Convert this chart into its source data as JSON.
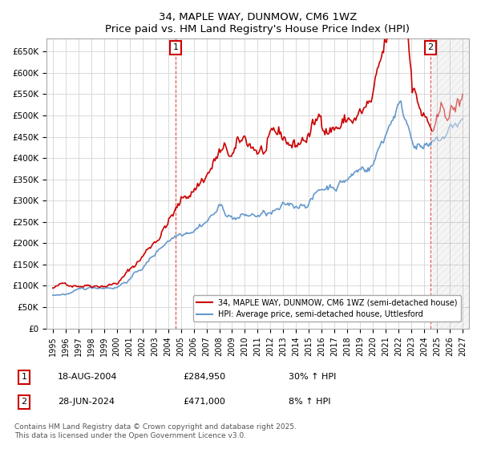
{
  "title": "34, MAPLE WAY, DUNMOW, CM6 1WZ",
  "subtitle": "Price paid vs. HM Land Registry's House Price Index (HPI)",
  "legend_label_red": "34, MAPLE WAY, DUNMOW, CM6 1WZ (semi-detached house)",
  "legend_label_blue": "HPI: Average price, semi-detached house, Uttlesford",
  "annotation1_label": "1",
  "annotation1_date": "18-AUG-2004",
  "annotation1_price": "£284,950",
  "annotation1_hpi": "30% ↑ HPI",
  "annotation1_year": 2004.6,
  "annotation1_value": 284950,
  "annotation2_label": "2",
  "annotation2_date": "28-JUN-2024",
  "annotation2_price": "£471,000",
  "annotation2_hpi": "8% ↑ HPI",
  "annotation2_year": 2024.5,
  "annotation2_value": 471000,
  "footer": "Contains HM Land Registry data © Crown copyright and database right 2025.\nThis data is licensed under the Open Government Licence v3.0.",
  "ylim": [
    0,
    680000
  ],
  "xlim_start": 1994.5,
  "xlim_end": 2027.5,
  "red_color": "#cc0000",
  "blue_color": "#6699cc",
  "background_color": "#ffffff",
  "grid_color": "#cccccc"
}
